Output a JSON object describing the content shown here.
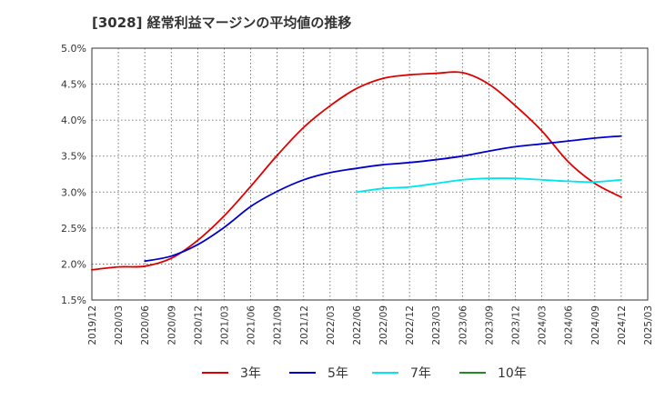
{
  "chart_data": {
    "type": "line",
    "title": "[3028]  経常利益マージンの平均値の推移",
    "xlabel": "",
    "ylabel": "",
    "ylim": [
      1.5,
      5.0
    ],
    "xlim": [
      "2019/12",
      "2025/03"
    ],
    "grid": true,
    "legend_position": "bottom",
    "y_ticks": [
      "1.5%",
      "2.0%",
      "2.5%",
      "3.0%",
      "3.5%",
      "4.0%",
      "4.5%",
      "5.0%"
    ],
    "x_ticks": [
      "2019/12",
      "2020/03",
      "2020/06",
      "2020/09",
      "2020/12",
      "2021/03",
      "2021/06",
      "2021/09",
      "2021/12",
      "2022/03",
      "2022/06",
      "2022/09",
      "2022/12",
      "2023/03",
      "2023/06",
      "2023/09",
      "2023/12",
      "2024/03",
      "2024/06",
      "2024/09",
      "2024/12",
      "2025/03"
    ],
    "series": [
      {
        "name": "3年",
        "color": "#dd0000",
        "points": [
          [
            "2019/12",
            1.92
          ],
          [
            "2020/03",
            1.96
          ],
          [
            "2020/06",
            1.97
          ],
          [
            "2020/09",
            2.08
          ],
          [
            "2020/12",
            2.33
          ],
          [
            "2021/03",
            2.67
          ],
          [
            "2021/06",
            3.08
          ],
          [
            "2021/09",
            3.51
          ],
          [
            "2021/12",
            3.9
          ],
          [
            "2022/03",
            4.2
          ],
          [
            "2022/06",
            4.44
          ],
          [
            "2022/09",
            4.58
          ],
          [
            "2022/12",
            4.63
          ],
          [
            "2023/03",
            4.65
          ],
          [
            "2023/06",
            4.66
          ],
          [
            "2023/09",
            4.5
          ],
          [
            "2023/12",
            4.2
          ],
          [
            "2024/03",
            3.85
          ],
          [
            "2024/06",
            3.42
          ],
          [
            "2024/09",
            3.12
          ],
          [
            "2024/12",
            2.93
          ]
        ]
      },
      {
        "name": "5年",
        "color": "#0000cc",
        "points": [
          [
            "2020/06",
            2.04
          ],
          [
            "2020/09",
            2.11
          ],
          [
            "2020/12",
            2.27
          ],
          [
            "2021/03",
            2.51
          ],
          [
            "2021/06",
            2.8
          ],
          [
            "2021/09",
            3.01
          ],
          [
            "2021/12",
            3.17
          ],
          [
            "2022/03",
            3.27
          ],
          [
            "2022/06",
            3.33
          ],
          [
            "2022/09",
            3.38
          ],
          [
            "2022/12",
            3.41
          ],
          [
            "2023/03",
            3.45
          ],
          [
            "2023/06",
            3.5
          ],
          [
            "2023/09",
            3.57
          ],
          [
            "2023/12",
            3.63
          ],
          [
            "2024/03",
            3.67
          ],
          [
            "2024/06",
            3.71
          ],
          [
            "2024/09",
            3.75
          ],
          [
            "2024/12",
            3.78
          ]
        ]
      },
      {
        "name": "7年",
        "color": "#00e5ee",
        "points": [
          [
            "2022/06",
            3.0
          ],
          [
            "2022/09",
            3.05
          ],
          [
            "2022/12",
            3.07
          ],
          [
            "2023/03",
            3.12
          ],
          [
            "2023/06",
            3.17
          ],
          [
            "2023/09",
            3.19
          ],
          [
            "2023/12",
            3.19
          ],
          [
            "2024/03",
            3.17
          ],
          [
            "2024/06",
            3.15
          ],
          [
            "2024/09",
            3.14
          ],
          [
            "2024/12",
            3.17
          ]
        ]
      },
      {
        "name": "10年",
        "color": "#228b22",
        "points": []
      }
    ]
  }
}
